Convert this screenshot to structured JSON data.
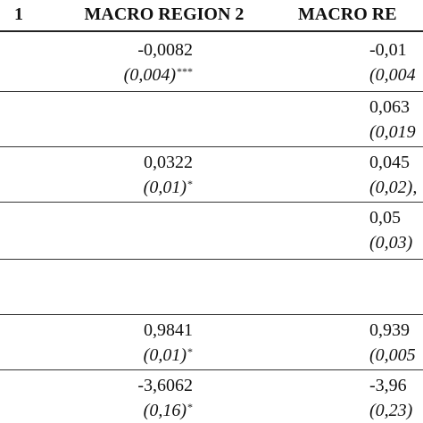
{
  "headers": [
    "1",
    "MACRO REGION 2",
    "MACRO RE"
  ],
  "rows": [
    {
      "col2": {
        "coef": "-0,0082",
        "se": "(0,004)",
        "stars": "***"
      },
      "col3": {
        "coef": "-0,01",
        "se": "(0,004"
      }
    },
    {
      "col2": {
        "coef": "",
        "se": "",
        "stars": ""
      },
      "col3": {
        "coef": "0,063",
        "se": "(0,019"
      }
    },
    {
      "col2": {
        "coef": "0,0322",
        "se": "(0,01)",
        "stars": "*"
      },
      "col3": {
        "coef": "0,045",
        "se": "(0,02),"
      }
    },
    {
      "col2": {
        "coef": "",
        "se": "",
        "stars": ""
      },
      "col3": {
        "coef": "0,05",
        "se": "(0,03)"
      }
    },
    {
      "col2": {
        "coef": "",
        "se": "",
        "stars": ""
      },
      "col3": {
        "coef": "",
        "se": ""
      }
    },
    {
      "col2": {
        "coef": "0,9841",
        "se": "(0,01)",
        "stars": "*"
      },
      "col3": {
        "coef": "0,939",
        "se": "(0,005"
      }
    },
    {
      "col2": {
        "coef": "-3,6062",
        "se": "(0,16)",
        "stars": "*"
      },
      "col3": {
        "coef": "-3,96",
        "se": "(0,23)"
      }
    }
  ]
}
